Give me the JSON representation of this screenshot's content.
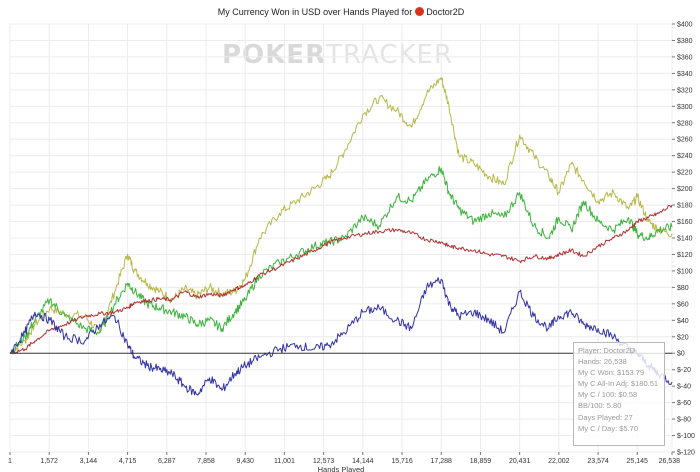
{
  "title": {
    "prefix": "My Currency Won in USD over Hands Played for",
    "player": "Doctor2D",
    "icon": "player-flag-icon"
  },
  "watermark": {
    "part1": "POKER",
    "part2": "TRACKER"
  },
  "stats": {
    "player": "Player: Doctor2D",
    "hands": "Hands: 26,538",
    "won": "My C Won: $153.79",
    "allin": "My C All-In Adj: $180.51",
    "per100": "My C / 100: $0.58",
    "bb100": "BB/100: 5.80",
    "days": "Days Played: 27",
    "perday": "My C / Day: $5.70"
  },
  "chart_data": {
    "type": "line",
    "title": "My Currency Won in USD over Hands Played for Doctor2D",
    "xlabel": "Hands Played",
    "ylabel": "",
    "xlim": [
      1,
      26538
    ],
    "ylim": [
      -120,
      400
    ],
    "x_ticks": [
      "1",
      "1,572",
      "3,144",
      "4,715",
      "6,287",
      "7,858",
      "9,430",
      "11,001",
      "12,573",
      "14,144",
      "15,716",
      "17,288",
      "18,859",
      "20,431",
      "22,002",
      "23,574",
      "25,145",
      "26,538"
    ],
    "x_tick_values": [
      1,
      1572,
      3144,
      4715,
      6287,
      7858,
      9430,
      11001,
      12573,
      14144,
      15716,
      17288,
      18859,
      20431,
      22002,
      23574,
      25145,
      26538
    ],
    "y_ticks": [
      -120,
      -100,
      -80,
      -60,
      -40,
      -20,
      0,
      20,
      40,
      60,
      80,
      100,
      120,
      140,
      160,
      180,
      200,
      220,
      240,
      260,
      280,
      300,
      320,
      340,
      360,
      380,
      400
    ],
    "y_tick_labels": [
      "$-120",
      "$-100",
      "$-80",
      "$-60",
      "$-40",
      "$-20",
      "$0",
      "$20",
      "$40",
      "$60",
      "$80",
      "$100",
      "$120",
      "$140",
      "$160",
      "$180",
      "$200",
      "$220",
      "$240",
      "$260",
      "$280",
      "$300",
      "$320",
      "$340",
      "$360",
      "$380",
      "$400"
    ],
    "grid": true,
    "series": [
      {
        "color": "#b8b84a",
        "x": [
          1,
          600,
          1000,
          1600,
          2200,
          3000,
          3600,
          4200,
          4715,
          5000,
          5500,
          6000,
          6500,
          7000,
          7500,
          8000,
          8500,
          9000,
          9430,
          10000,
          10800,
          11500,
          12200,
          12800,
          13400,
          14144,
          14800,
          15500,
          16100,
          16700,
          17288,
          17600,
          18000,
          18600,
          19200,
          19800,
          20431,
          21000,
          21600,
          22002,
          22500,
          23000,
          23574,
          24200,
          24800,
          25145,
          25600,
          26000,
          26538
        ],
        "y": [
          0,
          15,
          35,
          55,
          48,
          45,
          25,
          75,
          120,
          100,
          85,
          75,
          65,
          78,
          70,
          80,
          72,
          75,
          90,
          140,
          170,
          185,
          200,
          215,
          245,
          290,
          310,
          295,
          275,
          315,
          335,
          300,
          240,
          230,
          215,
          205,
          265,
          240,
          215,
          195,
          230,
          210,
          185,
          195,
          175,
          190,
          160,
          150,
          145
        ]
      },
      {
        "color": "#3cb43c",
        "x": [
          1,
          600,
          1000,
          1600,
          2200,
          3000,
          3600,
          4200,
          4715,
          5000,
          5500,
          6000,
          6500,
          7000,
          7500,
          8000,
          8500,
          9000,
          9430,
          10000,
          10800,
          11500,
          12200,
          12800,
          13400,
          14144,
          14800,
          15500,
          16100,
          16700,
          17288,
          17600,
          18000,
          18600,
          19200,
          19800,
          20431,
          21000,
          21600,
          22002,
          22500,
          23000,
          23574,
          24200,
          24800,
          25145,
          25600,
          26000,
          26538
        ],
        "y": [
          0,
          20,
          40,
          65,
          45,
          30,
          25,
          60,
          85,
          75,
          60,
          55,
          50,
          45,
          35,
          40,
          30,
          50,
          65,
          95,
          110,
          120,
          130,
          135,
          140,
          165,
          155,
          190,
          185,
          210,
          225,
          195,
          175,
          160,
          170,
          165,
          195,
          155,
          140,
          165,
          150,
          185,
          160,
          150,
          165,
          145,
          140,
          150,
          153
        ]
      },
      {
        "color": "#b03232",
        "x": [
          1,
          600,
          1000,
          1600,
          2200,
          3000,
          3600,
          4200,
          4715,
          5000,
          5500,
          6000,
          6500,
          7000,
          7500,
          8000,
          8500,
          9000,
          9430,
          10000,
          10800,
          11500,
          12200,
          12800,
          13400,
          14144,
          14800,
          15500,
          16100,
          16700,
          17288,
          17600,
          18000,
          18600,
          19200,
          19800,
          20431,
          21000,
          21600,
          22002,
          22500,
          23000,
          23574,
          24200,
          24800,
          25145,
          25600,
          26000,
          26538
        ],
        "y": [
          0,
          5,
          15,
          28,
          35,
          45,
          48,
          50,
          55,
          62,
          64,
          66,
          65,
          75,
          68,
          72,
          70,
          78,
          82,
          95,
          105,
          115,
          125,
          135,
          140,
          145,
          148,
          150,
          146,
          138,
          135,
          130,
          128,
          125,
          120,
          118,
          112,
          118,
          115,
          120,
          125,
          118,
          130,
          140,
          150,
          160,
          165,
          170,
          180
        ]
      },
      {
        "color": "#3232a8",
        "x": [
          1,
          600,
          1000,
          1600,
          2200,
          3000,
          3600,
          4200,
          4715,
          5000,
          5500,
          6000,
          6500,
          7000,
          7500,
          8000,
          8500,
          9000,
          9430,
          10000,
          10800,
          11500,
          12200,
          12800,
          13400,
          14144,
          14800,
          15500,
          16100,
          16700,
          17288,
          17600,
          18000,
          18600,
          19200,
          19800,
          20431,
          21000,
          21600,
          22002,
          22500,
          23000,
          23574,
          24200,
          24800,
          25145,
          25600,
          26000,
          26538
        ],
        "y": [
          0,
          25,
          50,
          40,
          20,
          15,
          35,
          45,
          10,
          -5,
          -15,
          -20,
          -25,
          -40,
          -50,
          -30,
          -45,
          -25,
          -15,
          -5,
          5,
          10,
          5,
          10,
          25,
          50,
          55,
          40,
          30,
          80,
          90,
          60,
          45,
          50,
          40,
          25,
          75,
          45,
          30,
          45,
          50,
          35,
          30,
          20,
          5,
          0,
          -15,
          -25,
          -35
        ]
      }
    ]
  }
}
